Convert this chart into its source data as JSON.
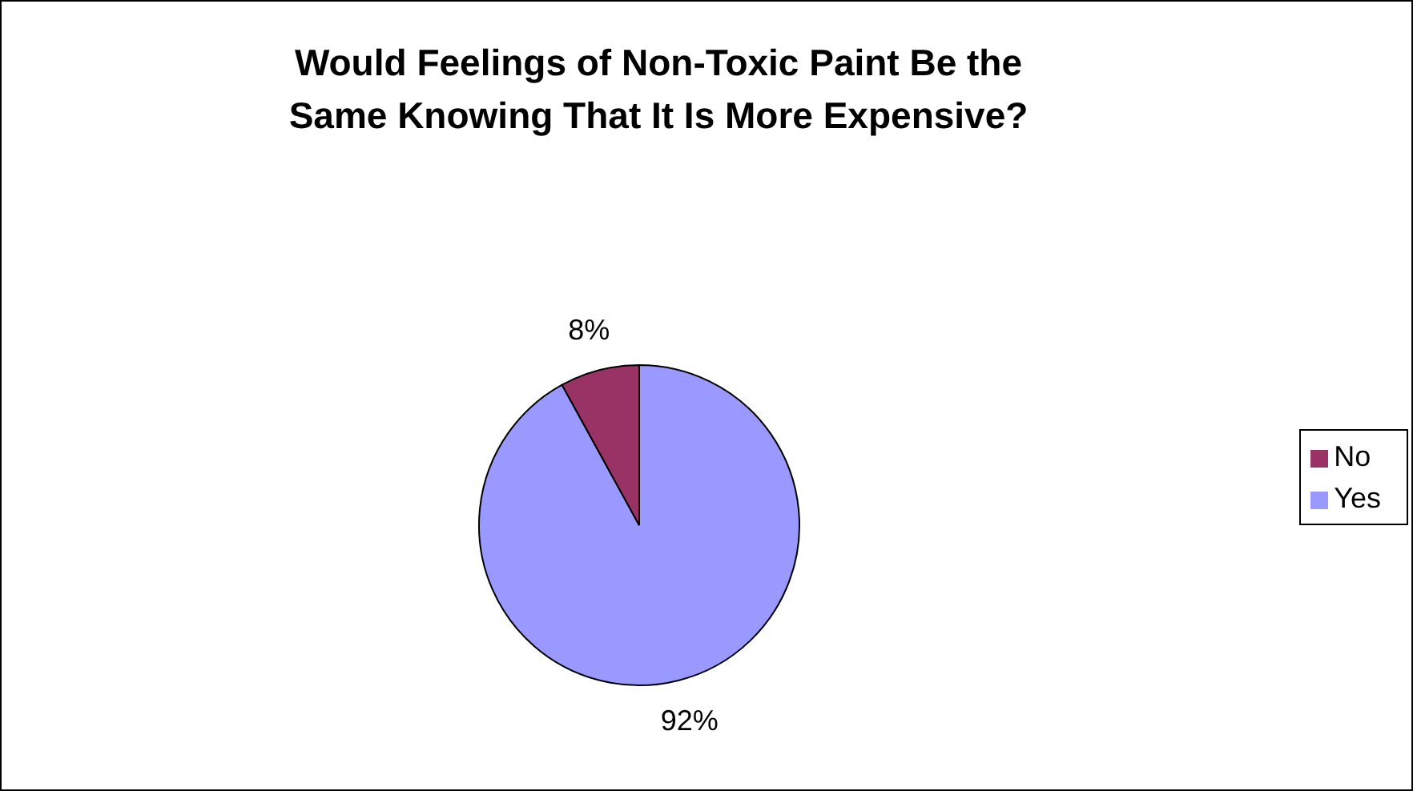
{
  "chart_data": {
    "type": "pie",
    "title": "Would Feelings of Non-Toxic Paint Be the Same Knowing That It Is More Expensive?",
    "categories": [
      "Yes",
      "No"
    ],
    "values": [
      92,
      8
    ],
    "colors": [
      "#9999ff",
      "#993366"
    ],
    "value_labels": [
      "92%",
      "8%"
    ],
    "legend": "right"
  }
}
